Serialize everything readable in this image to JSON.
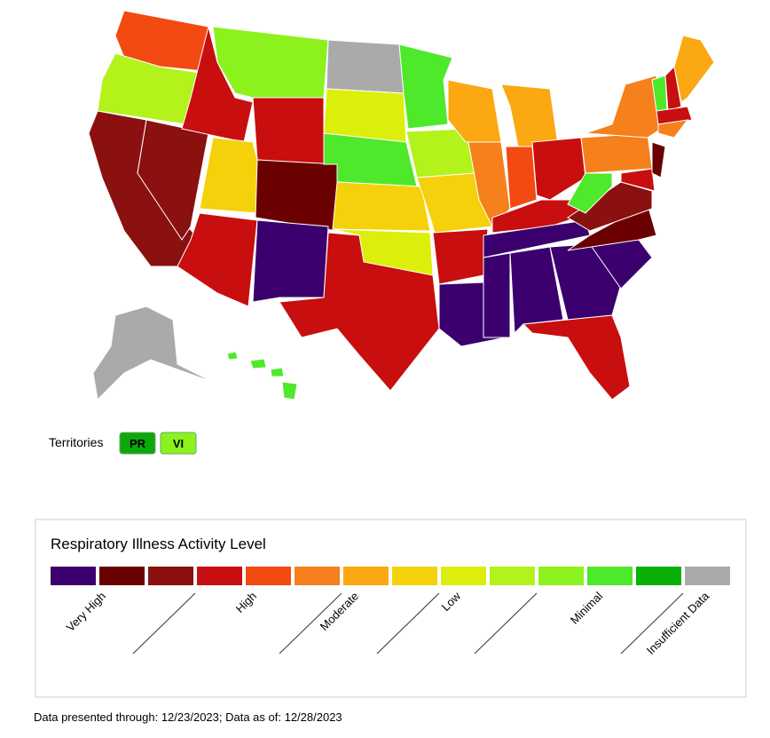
{
  "map": {
    "territories": {
      "label": "Territories",
      "items": [
        {
          "name": "PR",
          "color": "#0ca80c"
        },
        {
          "name": "VI",
          "color": "#8cf21e"
        }
      ]
    },
    "legend": {
      "title": "Respiratory Illness Activity Level",
      "colors": [
        "#3b006e",
        "#6b0000",
        "#8b1010",
        "#c80e0e",
        "#f24a10",
        "#f5801c",
        "#fba812",
        "#f4d10a",
        "#dcef0a",
        "#b4f21c",
        "#8cf21e",
        "#4ee92a",
        "#08b008",
        "#aaaaaa"
      ],
      "labels": [
        "Very High",
        "High",
        "Moderate",
        "Low",
        "Minimal",
        "Insufficient Data"
      ]
    },
    "footnote": "Data presented through: 12/23/2023; Data as of: 12/28/2023"
  }
}
